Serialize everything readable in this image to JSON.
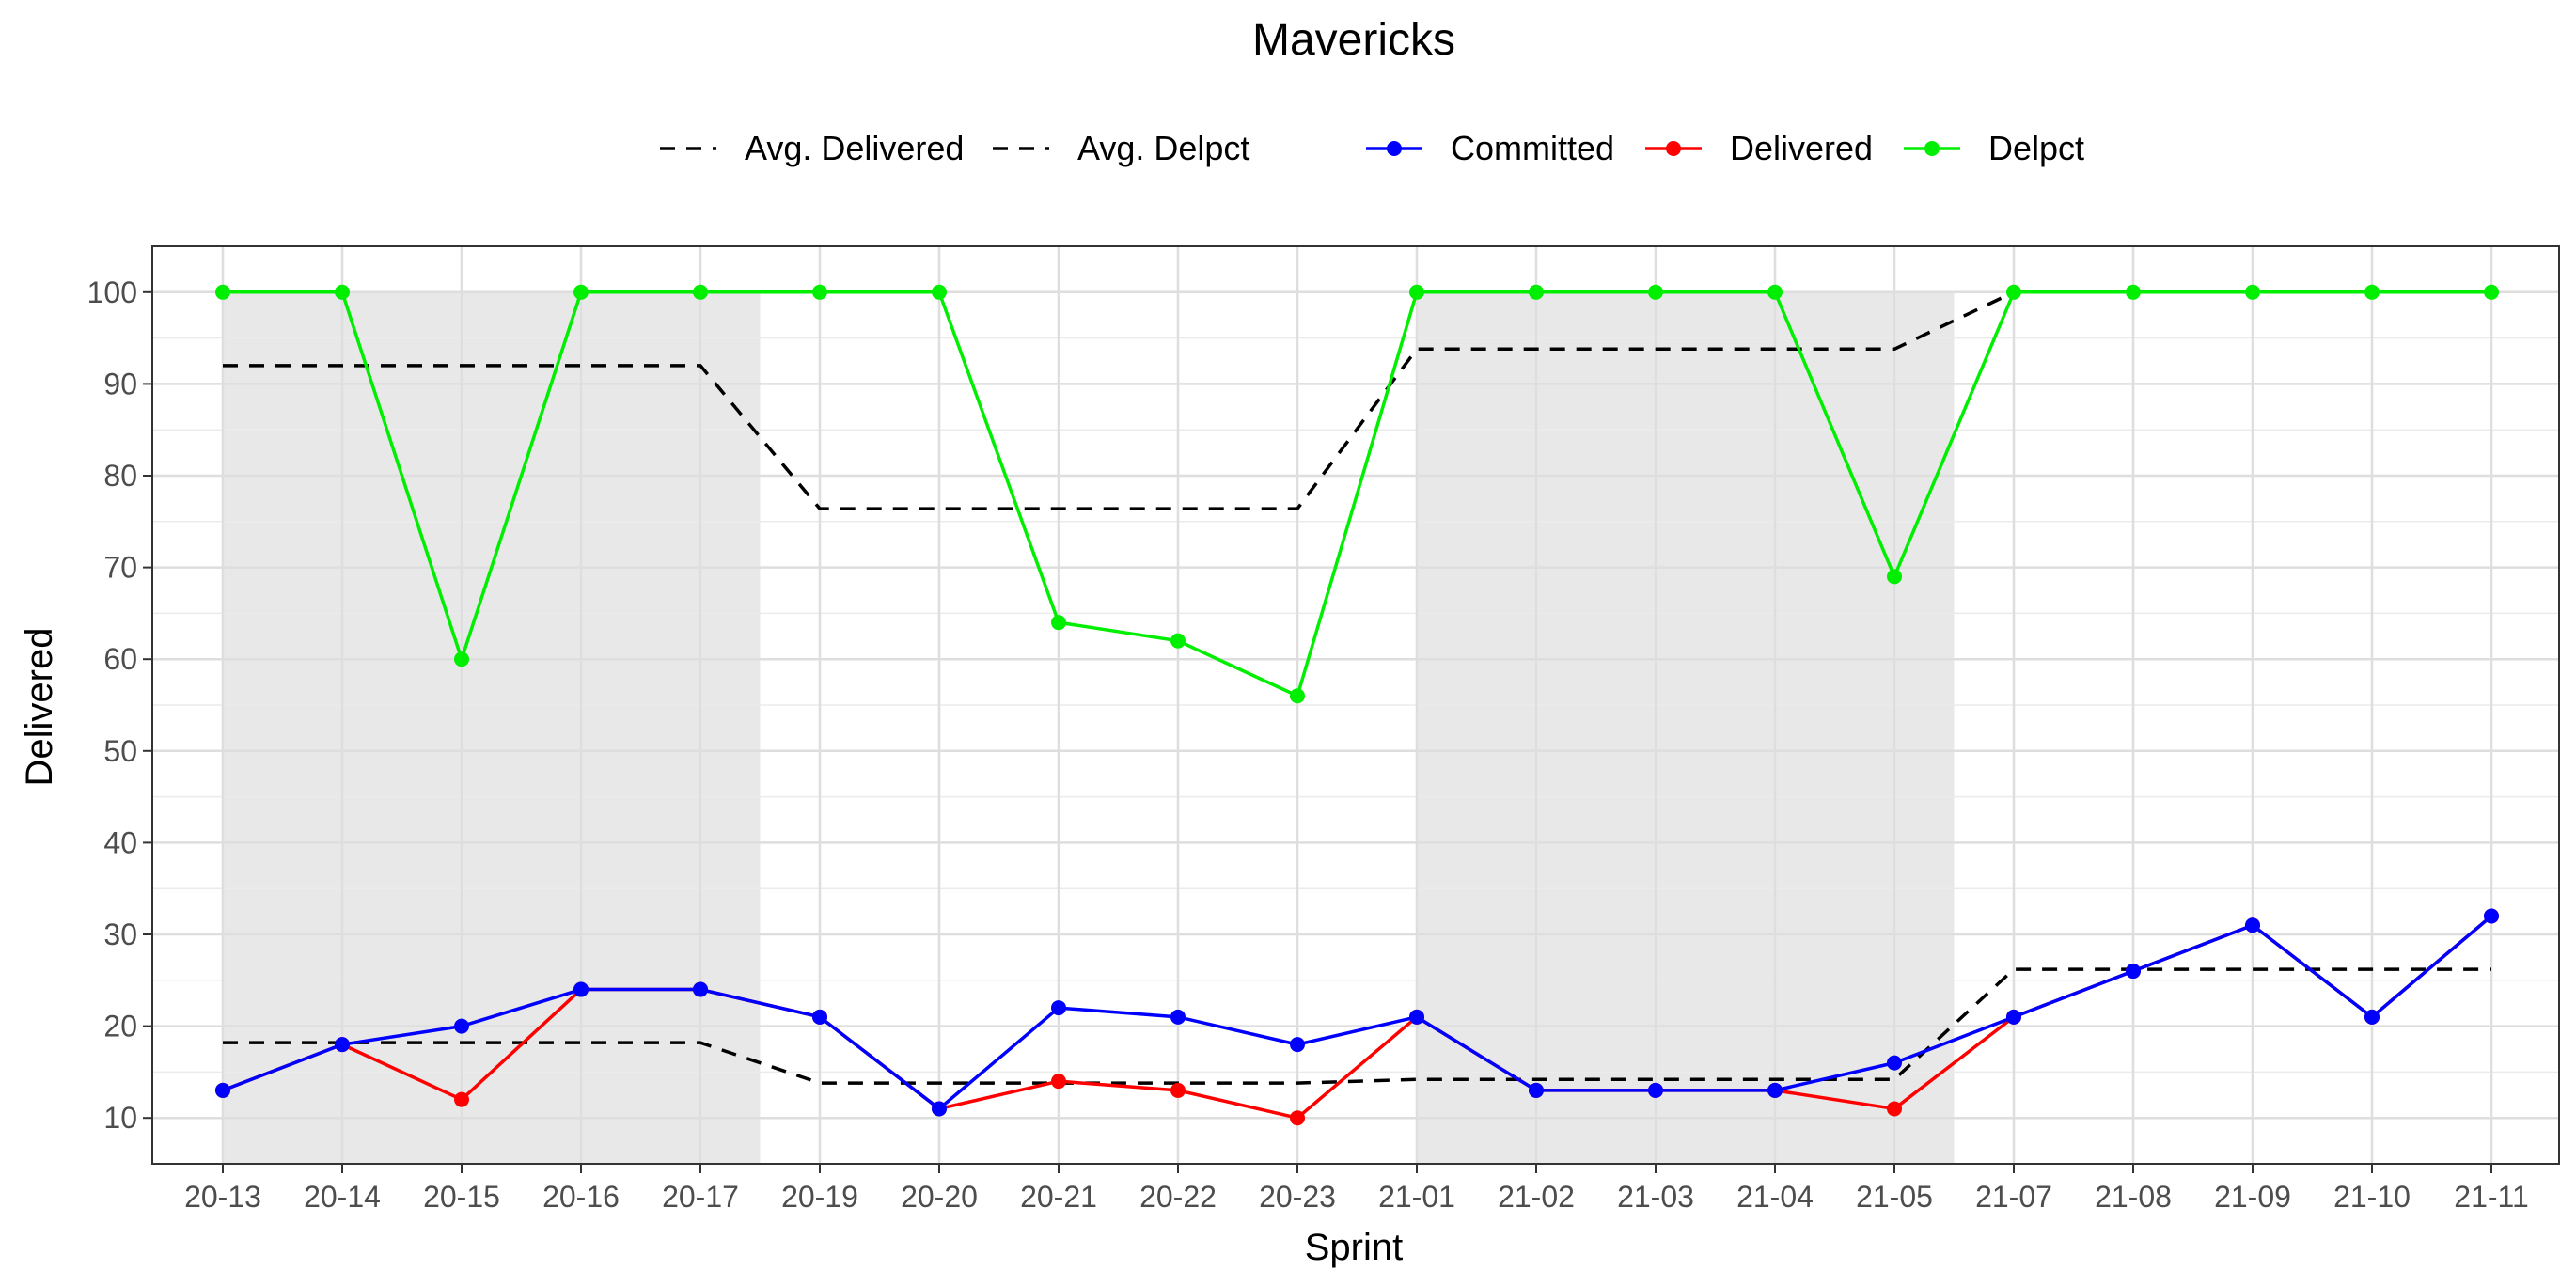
{
  "chart_data": {
    "type": "line",
    "title": "Mavericks",
    "xlabel": "Sprint",
    "ylabel": "Delivered",
    "categories": [
      "20-13",
      "20-14",
      "20-15",
      "20-16",
      "20-17",
      "20-19",
      "20-20",
      "20-21",
      "20-22",
      "20-23",
      "21-01",
      "21-02",
      "21-03",
      "21-04",
      "21-05",
      "21-07",
      "21-08",
      "21-09",
      "21-10",
      "21-11"
    ],
    "ylim": [
      5,
      105
    ],
    "yticks": [
      10,
      20,
      30,
      40,
      50,
      60,
      70,
      80,
      90,
      100
    ],
    "grid": true,
    "legend_position": "top",
    "shaded_bands": [
      {
        "from": "20-13",
        "to": "20-17",
        "color": "#e8e8e8"
      },
      {
        "from": "21-01",
        "to": "21-05",
        "color": "#e8e8e8"
      }
    ],
    "series": [
      {
        "name": "Committed",
        "color": "#0000ff",
        "style": "line-point",
        "values": [
          13,
          18,
          20,
          24,
          24,
          21,
          11,
          22,
          21,
          18,
          21,
          13,
          13,
          13,
          16,
          21,
          26,
          31,
          21,
          32
        ]
      },
      {
        "name": "Delivered",
        "color": "#ff0000",
        "style": "line-point",
        "values": [
          13,
          18,
          12,
          24,
          24,
          21,
          11,
          14,
          13,
          10,
          21,
          13,
          13,
          13,
          11,
          21,
          26,
          31,
          21,
          32
        ]
      },
      {
        "name": "Delpct",
        "color": "#00ee00",
        "style": "line-point",
        "values": [
          100,
          100,
          60,
          100,
          100,
          100,
          100,
          64,
          62,
          56,
          100,
          100,
          100,
          100,
          69,
          100,
          100,
          100,
          100,
          100
        ]
      },
      {
        "name": "Avg. Delivered",
        "color": "#000000",
        "style": "dashed",
        "values": [
          18.2,
          18.2,
          18.2,
          18.2,
          18.2,
          13.8,
          13.8,
          13.8,
          13.8,
          13.8,
          14.2,
          14.2,
          14.2,
          14.2,
          14.2,
          26.2,
          26.2,
          26.2,
          26.2,
          26.2
        ]
      },
      {
        "name": "Avg. Delpct",
        "color": "#000000",
        "style": "dashed",
        "values": [
          92,
          92,
          92,
          92,
          92,
          76.4,
          76.4,
          76.4,
          76.4,
          76.4,
          93.8,
          93.8,
          93.8,
          93.8,
          93.8,
          100,
          100,
          100,
          100,
          100
        ]
      }
    ],
    "legend_groups": [
      [
        "Avg. Delivered",
        "Avg. Delpct"
      ],
      [
        "Committed",
        "Delivered",
        "Delpct"
      ]
    ]
  }
}
